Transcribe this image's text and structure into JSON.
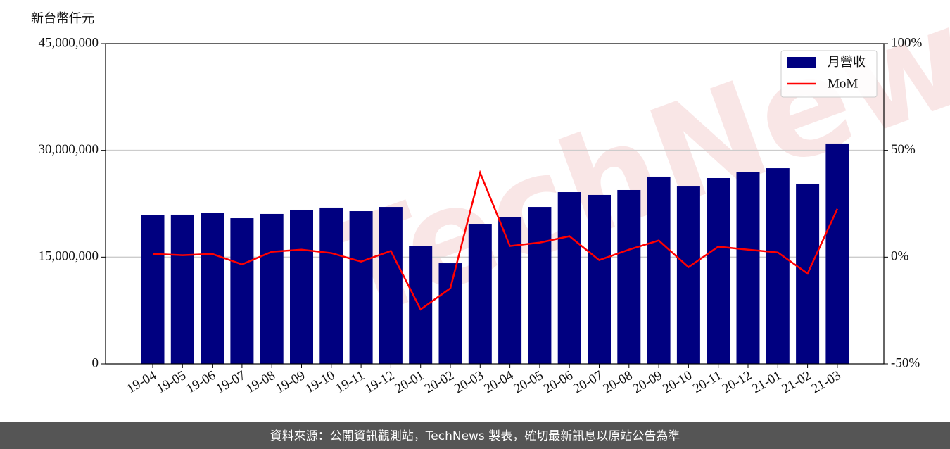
{
  "chart_data": {
    "type": "bar_line",
    "watermark": "TechNews",
    "y_label": "新台幣仟元",
    "footer": "資料來源：公開資訊觀測站，TechNews 製表，確切最新訊息以原站公告為準",
    "categories": [
      "19-04",
      "19-05",
      "19-06",
      "19-07",
      "19-08",
      "19-09",
      "19-10",
      "19-11",
      "19-12",
      "20-01",
      "20-02",
      "20-03",
      "20-04",
      "20-05",
      "20-06",
      "20-07",
      "20-08",
      "20-09",
      "20-10",
      "20-11",
      "20-12",
      "21-01",
      "21-02",
      "21-03"
    ],
    "series": [
      {
        "name": "月營收",
        "color": "#000080",
        "values": [
          20870000,
          20970000,
          21260000,
          20470000,
          21070000,
          21660000,
          21960000,
          21460000,
          22050000,
          16520000,
          14140000,
          19680000,
          20670000,
          22050000,
          24130000,
          23740000,
          24430000,
          26310000,
          24920000,
          26110000,
          27000000,
          27490000,
          25320000,
          30960000
        ]
      },
      {
        "name": "MoM",
        "color": "#ff0000",
        "axis": "y2",
        "values": [
          1.5,
          0.9,
          1.5,
          -3.4,
          2.5,
          3.5,
          1.9,
          -2.1,
          2.9,
          -24.5,
          -14.6,
          39.5,
          5.2,
          6.8,
          9.8,
          -1.4,
          3.5,
          7.8,
          -4.7,
          4.9,
          3.5,
          2.2,
          -7.7,
          22.6
        ]
      }
    ],
    "ylim": [
      0,
      45000000
    ],
    "yticks": [
      {
        "value": 0,
        "label": "0"
      },
      {
        "value": 15000000,
        "label": "15,000,000"
      },
      {
        "value": 30000000,
        "label": "30,000,000"
      },
      {
        "value": 45000000,
        "label": "45,000,000"
      }
    ],
    "y2lim": [
      -50,
      100
    ],
    "y2ticks": [
      {
        "value": -50,
        "label": "-50%"
      },
      {
        "value": 0,
        "label": "0%"
      },
      {
        "value": 50,
        "label": "50%"
      },
      {
        "value": 100,
        "label": "100%"
      }
    ],
    "grid": true,
    "legend": "upper right"
  }
}
